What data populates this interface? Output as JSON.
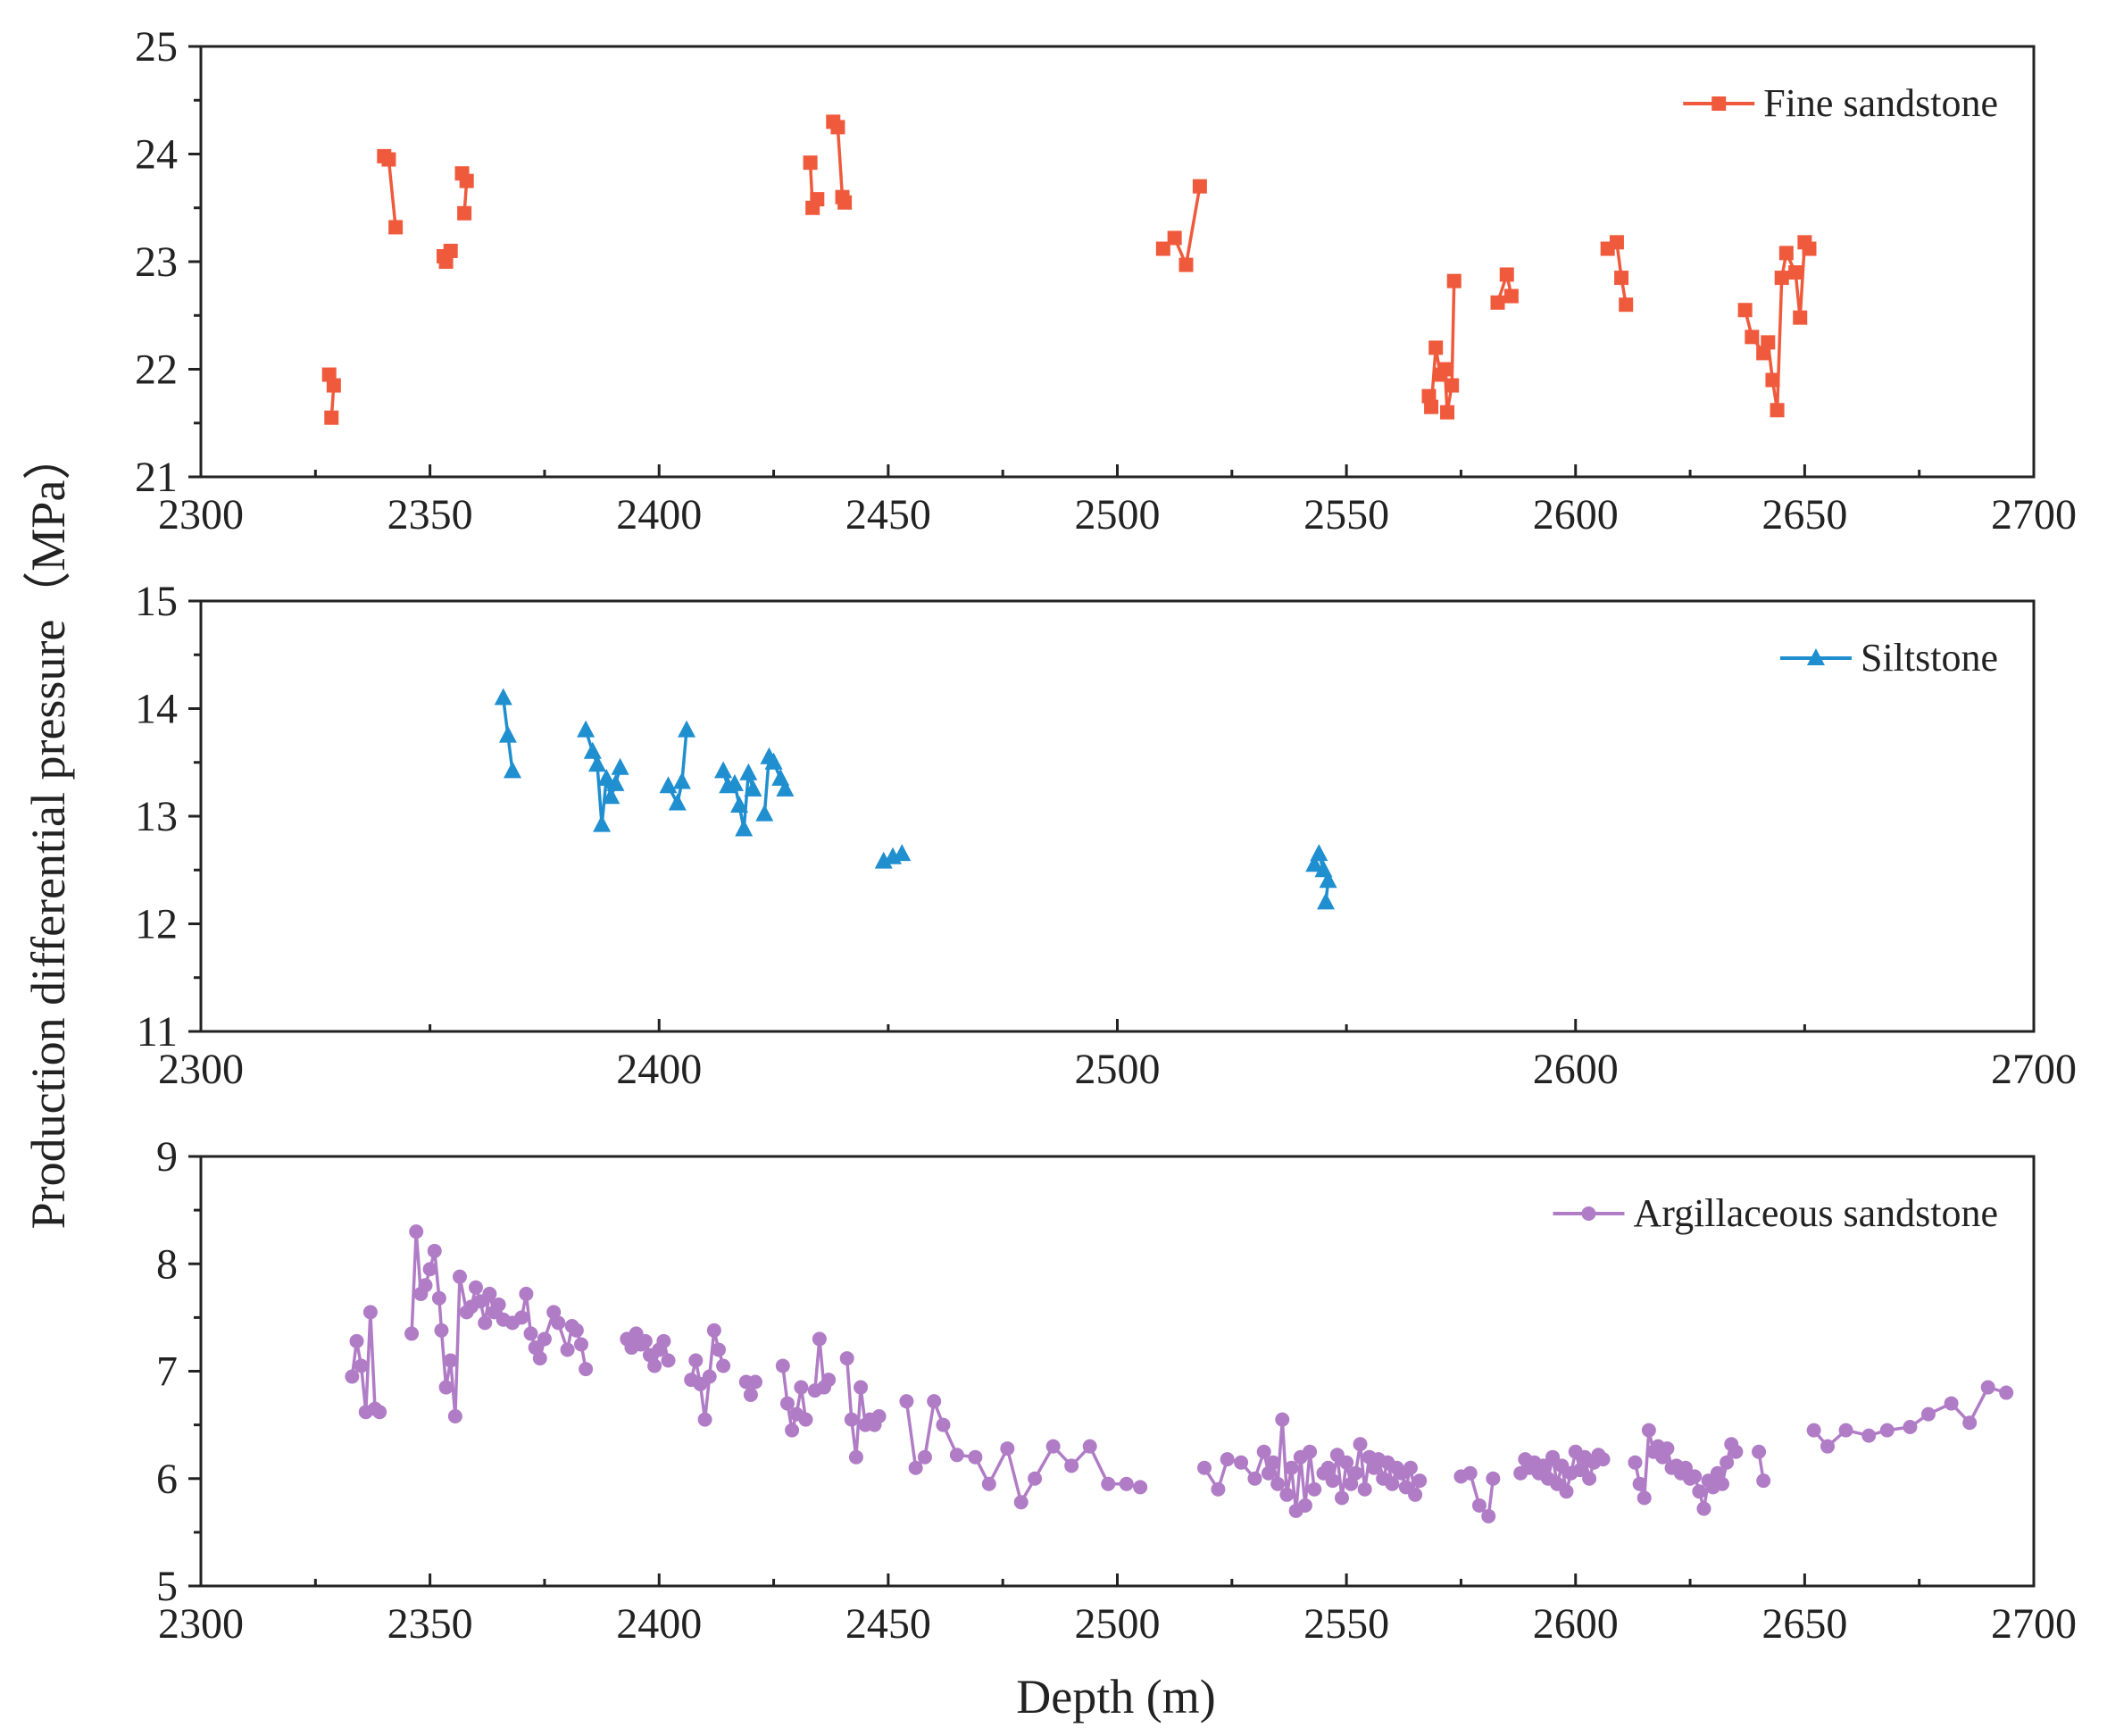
{
  "ylabel": "Production differential pressure（MPa）",
  "xlabel": "Depth (m)",
  "chart_data": [
    {
      "type": "line",
      "series_name": "Fine sandstone",
      "color": "#f05a3c",
      "marker": "square",
      "xlim": [
        2300,
        2700
      ],
      "ylim": [
        21,
        25
      ],
      "xticks": [
        2300,
        2350,
        2400,
        2450,
        2500,
        2550,
        2600,
        2650,
        2700
      ],
      "yticks": [
        21,
        22,
        23,
        24,
        25
      ],
      "segments": [
        [
          [
            2328,
            21.95
          ],
          [
            2329,
            21.85
          ],
          [
            2328.5,
            21.55
          ]
        ],
        [
          [
            2340,
            23.98
          ],
          [
            2341,
            23.95
          ],
          [
            2342.5,
            23.32
          ]
        ],
        [
          [
            2353,
            23.05
          ],
          [
            2353.5,
            23.0
          ],
          [
            2354.5,
            23.1
          ]
        ],
        [
          [
            2357,
            23.82
          ],
          [
            2358,
            23.75
          ],
          [
            2357.5,
            23.45
          ]
        ],
        [
          [
            2433,
            23.92
          ],
          [
            2433.5,
            23.5
          ],
          [
            2434.5,
            23.58
          ]
        ],
        [
          [
            2438,
            24.3
          ],
          [
            2439,
            24.25
          ],
          [
            2440,
            23.6
          ],
          [
            2440.5,
            23.55
          ]
        ],
        [
          [
            2510,
            23.12
          ],
          [
            2512.5,
            23.22
          ],
          [
            2515,
            22.97
          ],
          [
            2518,
            23.7
          ]
        ],
        [
          [
            2568,
            21.75
          ],
          [
            2568.5,
            21.65
          ],
          [
            2569.5,
            22.2
          ],
          [
            2570.5,
            21.95
          ],
          [
            2571.5,
            22.0
          ],
          [
            2572,
            21.6
          ],
          [
            2573,
            21.85
          ],
          [
            2573.5,
            22.82
          ]
        ],
        [
          [
            2583,
            22.62
          ],
          [
            2585,
            22.88
          ],
          [
            2586,
            22.68
          ]
        ],
        [
          [
            2607,
            23.12
          ],
          [
            2609,
            23.18
          ],
          [
            2610,
            22.85
          ],
          [
            2611,
            22.6
          ]
        ],
        [
          [
            2637,
            22.55
          ],
          [
            2638.5,
            22.3
          ],
          [
            2641,
            22.15
          ],
          [
            2642,
            22.25
          ],
          [
            2643,
            21.9
          ],
          [
            2644,
            21.62
          ],
          [
            2645,
            22.85
          ],
          [
            2646,
            23.08
          ],
          [
            2648,
            22.9
          ],
          [
            2649,
            22.48
          ],
          [
            2650,
            23.18
          ],
          [
            2651,
            23.12
          ]
        ]
      ],
      "legend": "top-right"
    },
    {
      "type": "line",
      "series_name": "Siltstone",
      "color": "#1f8fd0",
      "marker": "triangle",
      "xlim": [
        2300,
        2700
      ],
      "ylim": [
        11,
        15
      ],
      "xticks": [
        2300,
        2400,
        2500,
        2600,
        2700
      ],
      "yticks": [
        11,
        12,
        13,
        14,
        15
      ],
      "segments": [
        [
          [
            2366,
            14.1
          ],
          [
            2367,
            13.75
          ],
          [
            2368,
            13.42
          ]
        ],
        [
          [
            2384,
            13.8
          ],
          [
            2385.5,
            13.6
          ],
          [
            2386.5,
            13.48
          ],
          [
            2387.5,
            12.92
          ],
          [
            2388.5,
            13.35
          ],
          [
            2389.5,
            13.18
          ],
          [
            2390.5,
            13.3
          ],
          [
            2391.5,
            13.45
          ]
        ],
        [
          [
            2402,
            13.28
          ],
          [
            2404,
            13.12
          ],
          [
            2405,
            13.32
          ],
          [
            2406,
            13.8
          ]
        ],
        [
          [
            2414,
            13.42
          ],
          [
            2415,
            13.28
          ],
          [
            2416.5,
            13.3
          ],
          [
            2417.5,
            13.1
          ],
          [
            2418.5,
            12.88
          ],
          [
            2419.5,
            13.4
          ],
          [
            2420.5,
            13.25
          ]
        ],
        [
          [
            2423,
            13.02
          ],
          [
            2424,
            13.55
          ],
          [
            2425,
            13.5
          ],
          [
            2426.5,
            13.35
          ],
          [
            2427.5,
            13.25
          ]
        ],
        [
          [
            2449,
            12.58
          ],
          [
            2451,
            12.62
          ],
          [
            2453,
            12.65
          ]
        ],
        [
          [
            2543,
            12.55
          ],
          [
            2544,
            12.65
          ],
          [
            2545,
            12.5
          ],
          [
            2546,
            12.4
          ],
          [
            2545.5,
            12.2
          ]
        ]
      ],
      "legend": "top-right"
    },
    {
      "type": "line",
      "series_name": "Argillaceous sandstone",
      "color": "#b07cc6",
      "marker": "circle",
      "xlim": [
        2300,
        2700
      ],
      "ylim": [
        5,
        9
      ],
      "xticks": [
        2300,
        2350,
        2400,
        2450,
        2500,
        2550,
        2600,
        2650,
        2700
      ],
      "yticks": [
        5,
        6,
        7,
        8,
        9
      ],
      "segments": [
        [
          [
            2333,
            6.95
          ],
          [
            2334,
            7.28
          ],
          [
            2335,
            7.05
          ],
          [
            2336,
            6.62
          ],
          [
            2337,
            7.55
          ],
          [
            2338,
            6.65
          ],
          [
            2339,
            6.62
          ]
        ],
        [
          [
            2346,
            7.35
          ],
          [
            2347,
            8.3
          ],
          [
            2348,
            7.72
          ],
          [
            2349,
            7.8
          ],
          [
            2350,
            7.95
          ],
          [
            2351,
            8.12
          ],
          [
            2352,
            7.68
          ],
          [
            2352.5,
            7.38
          ],
          [
            2353.5,
            6.85
          ],
          [
            2354.5,
            7.1
          ],
          [
            2355.5,
            6.58
          ],
          [
            2356.5,
            7.88
          ],
          [
            2358,
            7.55
          ]
        ],
        [
          [
            2359,
            7.6
          ],
          [
            2360,
            7.78
          ],
          [
            2361,
            7.65
          ],
          [
            2362,
            7.45
          ],
          [
            2363,
            7.72
          ],
          [
            2364,
            7.55
          ],
          [
            2365,
            7.62
          ],
          [
            2366,
            7.48
          ],
          [
            2368,
            7.45
          ],
          [
            2370,
            7.5
          ],
          [
            2371,
            7.72
          ],
          [
            2372,
            7.35
          ],
          [
            2373,
            7.22
          ],
          [
            2374,
            7.12
          ],
          [
            2375,
            7.3
          ],
          [
            2377,
            7.55
          ],
          [
            2378,
            7.45
          ],
          [
            2380,
            7.2
          ],
          [
            2381,
            7.42
          ],
          [
            2382,
            7.38
          ],
          [
            2383,
            7.25
          ],
          [
            2384,
            7.02
          ]
        ],
        [
          [
            2393,
            7.3
          ],
          [
            2394,
            7.22
          ],
          [
            2395,
            7.35
          ],
          [
            2396,
            7.25
          ],
          [
            2397,
            7.28
          ],
          [
            2398,
            7.15
          ],
          [
            2399,
            7.05
          ],
          [
            2400,
            7.2
          ],
          [
            2401,
            7.28
          ],
          [
            2402,
            7.1
          ]
        ],
        [
          [
            2407,
            6.92
          ],
          [
            2408,
            7.1
          ],
          [
            2409,
            6.88
          ],
          [
            2410,
            6.55
          ],
          [
            2411,
            6.95
          ],
          [
            2412,
            7.38
          ],
          [
            2413,
            7.2
          ],
          [
            2414,
            7.05
          ]
        ],
        [
          [
            2419,
            6.9
          ],
          [
            2420,
            6.78
          ],
          [
            2421,
            6.9
          ]
        ],
        [
          [
            2427,
            7.05
          ],
          [
            2428,
            6.7
          ],
          [
            2429,
            6.45
          ],
          [
            2430,
            6.6
          ],
          [
            2431,
            6.85
          ],
          [
            2432,
            6.55
          ]
        ],
        [
          [
            2434,
            6.82
          ],
          [
            2435,
            7.3
          ],
          [
            2436,
            6.85
          ],
          [
            2437,
            6.92
          ]
        ],
        [
          [
            2441,
            7.12
          ],
          [
            2442,
            6.55
          ],
          [
            2443,
            6.2
          ],
          [
            2444,
            6.85
          ],
          [
            2445,
            6.5
          ],
          [
            2446,
            6.55
          ],
          [
            2447,
            6.5
          ],
          [
            2448,
            6.58
          ]
        ],
        [
          [
            2454,
            6.72
          ],
          [
            2456,
            6.1
          ],
          [
            2458,
            6.2
          ],
          [
            2460,
            6.72
          ],
          [
            2462,
            6.5
          ],
          [
            2465,
            6.22
          ],
          [
            2469,
            6.2
          ],
          [
            2472,
            5.95
          ],
          [
            2476,
            6.28
          ],
          [
            2479,
            5.78
          ],
          [
            2482,
            6.0
          ],
          [
            2486,
            6.3
          ],
          [
            2490,
            6.12
          ],
          [
            2494,
            6.3
          ],
          [
            2498,
            5.95
          ],
          [
            2502,
            5.95
          ],
          [
            2505,
            5.92
          ]
        ],
        [
          [
            2519,
            6.1
          ],
          [
            2522,
            5.9
          ],
          [
            2524,
            6.18
          ],
          [
            2527,
            6.15
          ],
          [
            2530,
            6.0
          ],
          [
            2532,
            6.25
          ],
          [
            2533,
            6.05
          ],
          [
            2534,
            6.15
          ],
          [
            2535,
            5.95
          ],
          [
            2536,
            6.55
          ],
          [
            2537,
            5.85
          ],
          [
            2538,
            6.1
          ],
          [
            2539,
            5.7
          ],
          [
            2540,
            6.2
          ],
          [
            2541,
            5.75
          ],
          [
            2542,
            6.25
          ],
          [
            2543,
            5.9
          ]
        ],
        [
          [
            2545,
            6.05
          ],
          [
            2546,
            6.1
          ],
          [
            2547,
            5.98
          ],
          [
            2548,
            6.22
          ],
          [
            2549,
            5.82
          ],
          [
            2550,
            6.15
          ],
          [
            2551,
            5.95
          ],
          [
            2552,
            6.05
          ],
          [
            2553,
            6.32
          ],
          [
            2554,
            5.9
          ],
          [
            2555,
            6.2
          ],
          [
            2556,
            6.1
          ],
          [
            2557,
            6.18
          ],
          [
            2558,
            6.0
          ],
          [
            2559,
            6.15
          ],
          [
            2560,
            5.95
          ],
          [
            2561,
            6.1
          ],
          [
            2562,
            6.05
          ],
          [
            2563,
            5.92
          ],
          [
            2564,
            6.1
          ],
          [
            2565,
            5.85
          ],
          [
            2566,
            5.98
          ]
        ],
        [
          [
            2575,
            6.02
          ],
          [
            2577,
            6.05
          ],
          [
            2579,
            5.75
          ],
          [
            2581,
            5.65
          ],
          [
            2582,
            6.0
          ]
        ],
        [
          [
            2588,
            6.05
          ],
          [
            2589,
            6.18
          ],
          [
            2590,
            6.1
          ],
          [
            2591,
            6.15
          ],
          [
            2592,
            6.05
          ],
          [
            2593,
            6.12
          ],
          [
            2594,
            6.0
          ],
          [
            2595,
            6.2
          ],
          [
            2596,
            5.95
          ],
          [
            2597,
            6.12
          ],
          [
            2598,
            5.88
          ],
          [
            2599,
            6.05
          ],
          [
            2600,
            6.25
          ],
          [
            2601,
            6.08
          ],
          [
            2602,
            6.2
          ],
          [
            2603,
            6.0
          ],
          [
            2604,
            6.15
          ],
          [
            2605,
            6.22
          ],
          [
            2606,
            6.18
          ]
        ],
        [
          [
            2613,
            6.15
          ],
          [
            2614,
            5.95
          ],
          [
            2615,
            5.82
          ],
          [
            2616,
            6.45
          ],
          [
            2617,
            6.25
          ],
          [
            2618,
            6.3
          ],
          [
            2619,
            6.2
          ],
          [
            2620,
            6.28
          ],
          [
            2621,
            6.1
          ],
          [
            2622,
            6.12
          ],
          [
            2623,
            6.05
          ],
          [
            2624,
            6.1
          ],
          [
            2625,
            6.0
          ],
          [
            2626,
            6.02
          ],
          [
            2627,
            5.88
          ],
          [
            2628,
            5.72
          ],
          [
            2629,
            5.98
          ],
          [
            2630,
            5.92
          ],
          [
            2631,
            6.05
          ],
          [
            2632,
            5.95
          ],
          [
            2633,
            6.15
          ],
          [
            2634,
            6.32
          ],
          [
            2635,
            6.25
          ]
        ],
        [
          [
            2640,
            6.25
          ],
          [
            2641,
            5.98
          ]
        ],
        [
          [
            2652,
            6.45
          ],
          [
            2655,
            6.3
          ],
          [
            2659,
            6.45
          ],
          [
            2664,
            6.4
          ],
          [
            2668,
            6.45
          ],
          [
            2673,
            6.48
          ],
          [
            2677,
            6.6
          ],
          [
            2682,
            6.7
          ],
          [
            2686,
            6.52
          ],
          [
            2690,
            6.85
          ],
          [
            2694,
            6.8
          ]
        ]
      ],
      "legend": "top-right"
    }
  ]
}
